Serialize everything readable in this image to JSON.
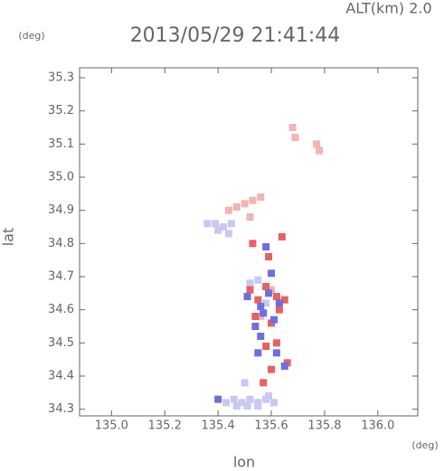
{
  "chart_data": {
    "type": "scatter",
    "title": "2013/05/29 21:41:44",
    "subtitle": "ALT(km) 2.0",
    "y_unit": "(deg)",
    "x_unit": "(deg)",
    "xlabel": "lon",
    "ylabel": "lat",
    "xlim": [
      134.88,
      136.15
    ],
    "ylim": [
      34.28,
      35.33
    ],
    "xticks": [
      {
        "value": 135,
        "label": "135.0"
      },
      135.2,
      135.4,
      135.6,
      135.8,
      {
        "value": 136,
        "label": "136.0"
      }
    ],
    "yticks": [
      34.3,
      34.4,
      34.5,
      34.6,
      34.7,
      34.8,
      34.9,
      {
        "value": 35,
        "label": "35.0"
      },
      35.1,
      35.2,
      35.3
    ],
    "series": [
      {
        "color": "#c8c8f2",
        "x": [
          135.43,
          135.46,
          135.49,
          135.52,
          135.55,
          135.58,
          135.61,
          135.47,
          135.51,
          135.55,
          135.59,
          135.36,
          135.39,
          135.42,
          135.45,
          135.4,
          135.44,
          135.52,
          135.55,
          135.58,
          135.5
        ],
        "y": [
          34.32,
          34.33,
          34.32,
          34.33,
          34.32,
          34.33,
          34.32,
          34.31,
          34.31,
          34.31,
          34.34,
          34.86,
          34.86,
          34.85,
          34.86,
          34.84,
          34.83,
          34.68,
          34.69,
          34.62,
          34.38
        ]
      },
      {
        "color": "#f2b4b4",
        "x": [
          135.44,
          135.47,
          135.5,
          135.53,
          135.56,
          135.68,
          135.69,
          135.77,
          135.78,
          135.52,
          135.6,
          135.56
        ],
        "y": [
          34.9,
          34.91,
          34.92,
          34.93,
          34.94,
          35.15,
          35.12,
          35.1,
          35.08,
          34.88,
          34.66,
          34.58
        ]
      },
      {
        "color": "#e86060",
        "x": [
          135.52,
          135.55,
          135.58,
          135.62,
          135.65,
          135.54,
          135.6,
          135.63,
          135.58,
          135.62,
          135.6,
          135.66,
          135.57,
          135.64,
          135.53,
          135.59
        ],
        "y": [
          34.66,
          34.63,
          34.67,
          34.64,
          34.63,
          34.58,
          34.56,
          34.6,
          34.49,
          34.5,
          34.42,
          34.44,
          34.38,
          34.82,
          34.8,
          34.76
        ]
      },
      {
        "color": "#6e6ee2",
        "x": [
          135.51,
          135.56,
          135.59,
          135.63,
          135.54,
          135.57,
          135.61,
          135.55,
          135.62,
          135.65,
          135.4,
          135.56,
          135.58,
          135.6
        ],
        "y": [
          34.64,
          34.61,
          34.65,
          34.62,
          34.55,
          34.59,
          34.57,
          34.47,
          34.47,
          34.43,
          34.33,
          34.52,
          34.79,
          34.71
        ]
      }
    ]
  }
}
